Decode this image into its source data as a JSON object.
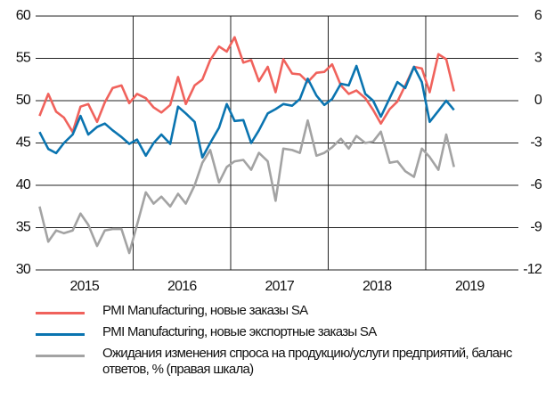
{
  "chart_data": {
    "type": "line",
    "x": [
      2015.04,
      2015.13,
      2015.21,
      2015.29,
      2015.38,
      2015.46,
      2015.54,
      2015.63,
      2015.71,
      2015.79,
      2015.88,
      2015.96,
      2016.04,
      2016.13,
      2016.21,
      2016.29,
      2016.38,
      2016.46,
      2016.54,
      2016.63,
      2016.71,
      2016.79,
      2016.88,
      2016.96,
      2017.04,
      2017.13,
      2017.21,
      2017.29,
      2017.38,
      2017.46,
      2017.54,
      2017.63,
      2017.71,
      2017.79,
      2017.88,
      2017.96,
      2018.04,
      2018.13,
      2018.21,
      2018.29,
      2018.38,
      2018.46,
      2018.54,
      2018.63,
      2018.71,
      2018.79,
      2018.88,
      2018.96,
      2019.04,
      2019.13,
      2019.21,
      2019.29
    ],
    "xlim": [
      2015,
      2019.95
    ],
    "xticks": [
      {
        "value": 2015.5,
        "label": "2015"
      },
      {
        "value": 2016.5,
        "label": "2016"
      },
      {
        "value": 2017.5,
        "label": "2017"
      },
      {
        "value": 2018.5,
        "label": "2018"
      },
      {
        "value": 2019.45,
        "label": "2019"
      }
    ],
    "xgrid": [
      2016,
      2017,
      2018,
      2019
    ],
    "ylim": [
      30,
      60
    ],
    "yticks": [
      30,
      35,
      40,
      45,
      50,
      55,
      60
    ],
    "y2lim": [
      -12,
      6
    ],
    "y2ticks": [
      -12,
      -9,
      -6,
      -3,
      0,
      3,
      6
    ],
    "grid": true,
    "series": [
      {
        "name": "PMI Manufacturing, новые заказы SA",
        "color": "#f0625c",
        "values": [
          48.2,
          50.8,
          48.7,
          48.0,
          46.3,
          49.3,
          49.6,
          47.5,
          49.8,
          51.5,
          51.8,
          49.7,
          50.8,
          50.3,
          49.2,
          48.6,
          49.5,
          52.8,
          49.6,
          51.8,
          52.5,
          54.8,
          56.4,
          55.8,
          57.5,
          54.5,
          54.8,
          52.3,
          54.0,
          51.0,
          54.9,
          53.2,
          53.1,
          52.2,
          53.3,
          53.4,
          54.3,
          51.8,
          50.8,
          51.2,
          50.3,
          48.9,
          47.3,
          49.0,
          49.9,
          51.8,
          54.0,
          53.8,
          51.0,
          55.5,
          54.9,
          51.1
        ]
      },
      {
        "name": "PMI Manufacturing, новые экспортные заказы SA",
        "color": "#0a74b0",
        "values": [
          46.3,
          44.3,
          43.8,
          45.0,
          46.0,
          48.2,
          46.0,
          46.9,
          47.3,
          46.5,
          45.7,
          44.9,
          45.4,
          43.5,
          45.0,
          46.0,
          44.9,
          49.3,
          48.5,
          47.5,
          43.3,
          45.0,
          46.8,
          49.6,
          47.6,
          47.7,
          45.0,
          46.5,
          48.5,
          49.0,
          49.6,
          49.4,
          50.2,
          52.6,
          50.6,
          49.5,
          50.2,
          52.0,
          51.8,
          54.1,
          50.8,
          50.0,
          48.1,
          50.3,
          52.2,
          51.5,
          54.0,
          52.2,
          47.5,
          48.8,
          50.0,
          48.9
        ]
      },
      {
        "name": "Ожидания изменения спроса на продукцию/услуги предприятий, баланс ответов, % (правая шкала)",
        "color": "#a3a3a3",
        "axis": "y2",
        "values": [
          -7.5,
          -10.0,
          -9.2,
          -9.4,
          -9.2,
          -8.0,
          -8.8,
          -10.3,
          -9.2,
          -9.1,
          -9.1,
          -10.8,
          -8.8,
          -6.5,
          -7.3,
          -6.8,
          -7.5,
          -6.6,
          -7.3,
          -6.0,
          -4.4,
          -3.5,
          -5.8,
          -4.7,
          -4.3,
          -4.2,
          -4.9,
          -3.7,
          -4.3,
          -7.1,
          -3.4,
          -3.5,
          -3.7,
          -1.4,
          -3.9,
          -3.7,
          -3.3,
          -2.7,
          -3.4,
          -2.5,
          -3.0,
          -2.9,
          -2.2,
          -4.4,
          -4.3,
          -5.0,
          -5.4,
          -3.4,
          -4.0,
          -4.9,
          -2.4,
          -4.7
        ]
      }
    ]
  }
}
